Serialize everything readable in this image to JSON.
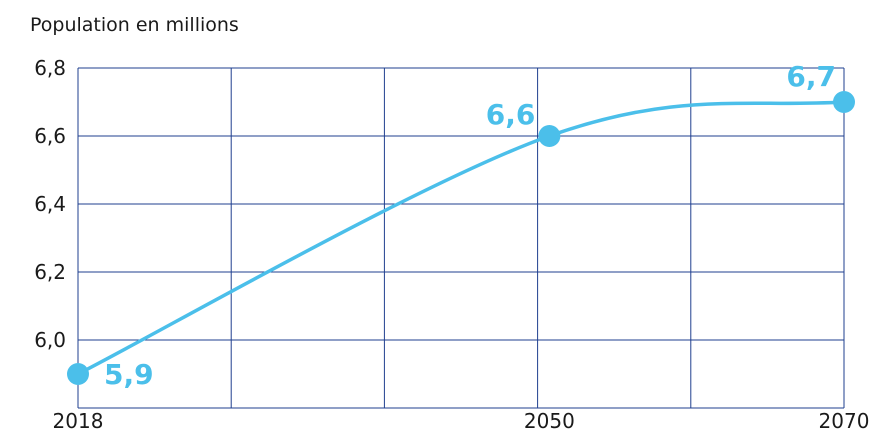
{
  "chart_data": {
    "type": "line",
    "ylabel": "Population en millions",
    "xlabel": "",
    "x": [
      2018,
      2050,
      2070
    ],
    "x_ticks": [
      "2018",
      "2050",
      "2070"
    ],
    "ylim": [
      5.8,
      6.8
    ],
    "y_ticks": [
      "6,8",
      "6,6",
      "6,4",
      "6,2",
      "6,0"
    ],
    "series": [
      {
        "values": [
          5.9,
          6.6,
          6.7
        ]
      }
    ],
    "data_labels": [
      "5,9",
      "6,6",
      "6,7"
    ],
    "grid": true,
    "colors": {
      "line": "#4bbfea",
      "grid": "#1f3f8f",
      "text": "#1a1a1a"
    }
  }
}
